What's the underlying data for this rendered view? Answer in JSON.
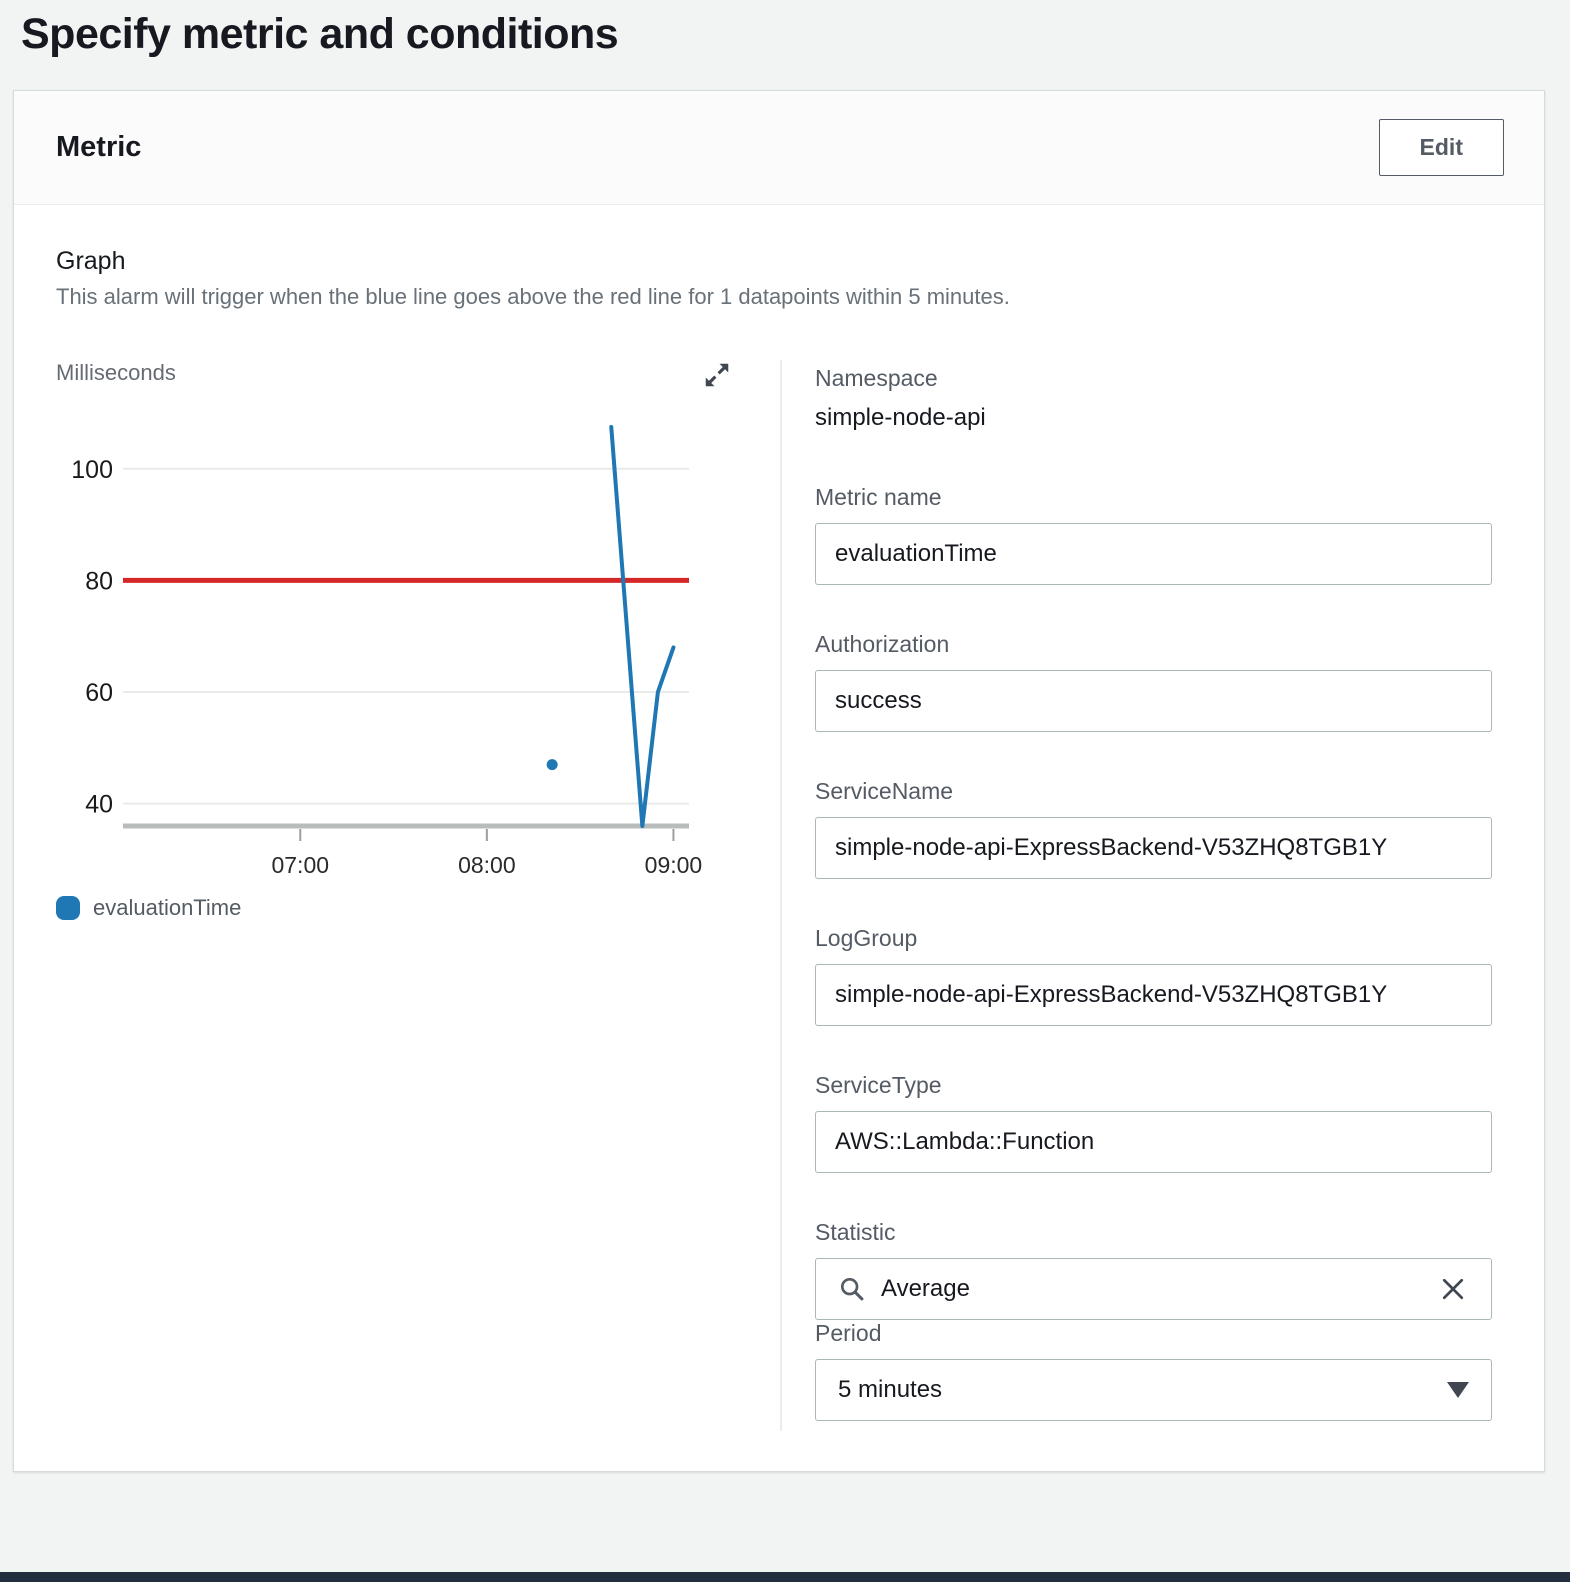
{
  "page": {
    "title": "Specify metric and conditions"
  },
  "card": {
    "title": "Metric",
    "edit_label": "Edit"
  },
  "graph": {
    "heading": "Graph",
    "description": "This alarm will trigger when the blue line goes above the red line for 1 datapoints within 5 minutes."
  },
  "form": {
    "namespace": {
      "label": "Namespace",
      "value": "simple-node-api"
    },
    "metric_name": {
      "label": "Metric name",
      "value": "evaluationTime"
    },
    "authorization": {
      "label": "Authorization",
      "value": "success"
    },
    "service_name": {
      "label": "ServiceName",
      "value": "simple-node-api-ExpressBackend-V53ZHQ8TGB1Y"
    },
    "log_group": {
      "label": "LogGroup",
      "value": "simple-node-api-ExpressBackend-V53ZHQ8TGB1Y"
    },
    "service_type": {
      "label": "ServiceType",
      "value": "AWS::Lambda::Function"
    },
    "statistic": {
      "label": "Statistic",
      "value": "Average"
    },
    "period": {
      "label": "Period",
      "value": "5 minutes"
    }
  },
  "icons": {
    "expand": "expand-icon",
    "search": "search-icon",
    "clear": "clear-icon",
    "caret": "caret-down-icon"
  },
  "colors": {
    "series_blue": "#1f77b4",
    "threshold_red": "#d62728",
    "footer_navy": "#232f3e"
  },
  "chart_data": {
    "type": "line",
    "title": "",
    "xlabel": "",
    "ylabel": "Milliseconds",
    "ylim": [
      36,
      110
    ],
    "x_range": [
      "06:03",
      "09:05"
    ],
    "y_ticks": [
      100,
      80,
      60,
      40
    ],
    "x_ticks": [
      "07:00",
      "08:00",
      "09:00"
    ],
    "grid": true,
    "threshold": {
      "label": "red line (alarm threshold)",
      "value": 80,
      "color": "#d62728"
    },
    "series": [
      {
        "name": "evaluationTime",
        "color": "#1f77b4",
        "points": [
          {
            "time": "08:40",
            "value": 107.5
          },
          {
            "time": "08:50",
            "value": 36
          },
          {
            "time": "08:55",
            "value": 60
          },
          {
            "time": "09:00",
            "value": 68
          }
        ],
        "isolated_points": [
          {
            "time": "08:21",
            "value": 47
          }
        ]
      }
    ],
    "legend": [
      {
        "label": "evaluationTime",
        "color": "#1f77b4"
      }
    ],
    "legend_position": "bottom-left"
  }
}
